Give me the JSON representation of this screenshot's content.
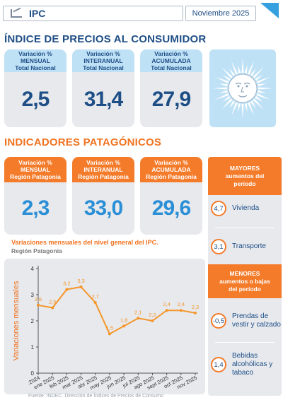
{
  "header": {
    "title": "IPC",
    "date": "Noviembre  2025"
  },
  "nacional": {
    "title": "ÍNDICE DE PRECIOS AL CONSUMIDOR",
    "cards": [
      {
        "line1": "Variación %",
        "line2": "MENSUAL",
        "line3": "Total Nacional",
        "value": "2,5"
      },
      {
        "line1": "Variación %",
        "line2": "INTERANUAL",
        "line3": "Total Nacional",
        "value": "31,4"
      },
      {
        "line1": "Variación %",
        "line2": "ACUMULADA",
        "line3": "Total Nacional",
        "value": "27,9"
      }
    ]
  },
  "patagonia": {
    "title": "INDICADORES PATAGÓNICOS",
    "cards": [
      {
        "line1": "Variación %",
        "line2": "MENSUAL",
        "line3": "Región Patagonia",
        "value": "2,3"
      },
      {
        "line1": "Variación %",
        "line2": "INTERANUAL",
        "line3": "Región Patagonia",
        "value": "33,0"
      },
      {
        "line1": "Variación %",
        "line2": "ACUMULADA",
        "line3": "Región Patagonia",
        "value": "29,6"
      }
    ]
  },
  "side": {
    "mayores_title": [
      "MAYORES",
      "aumentos del",
      "período"
    ],
    "mayores": [
      {
        "value": "4,7",
        "label": "Vivienda"
      },
      {
        "value": "3,1",
        "label": "Transporte"
      }
    ],
    "menores_title": [
      "MENORES",
      "aumentos o bajas",
      "del período"
    ],
    "menores": [
      {
        "value": "-0,5",
        "label_lines": [
          "Prendas de",
          "vestir y calzado"
        ]
      },
      {
        "value": "1,4",
        "label_lines": [
          "Bebidas",
          "alcohólicas y",
          "tabaco"
        ]
      }
    ]
  },
  "colors": {
    "navy": "#1e4e86",
    "orange": "#f47b2a",
    "light_blue": "#bfe1f6",
    "grey_panel": "#e7e9ed"
  },
  "chart_data": {
    "type": "line",
    "title": "Variaciones mensuales del nivel general del IPC.",
    "subtitle": "Región Patagonia",
    "ylabel": "Variaciones mensuales",
    "xlabel": "",
    "ylim": [
      0,
      4
    ],
    "yticks": [
      "0",
      "1",
      "2",
      "3",
      "4"
    ],
    "categories": [
      ".2024",
      "ene 2025",
      "feb 2025",
      "mar 2025",
      "abr 2025",
      "may 2025",
      "jun 2025",
      "jul 2025",
      "ago 2025",
      "sept 2025",
      "oct 2025",
      "nov 2025"
    ],
    "values": [
      2.6,
      2.5,
      3.2,
      3.3,
      2.7,
      1.5,
      1.8,
      2.1,
      2.0,
      2.4,
      2.4,
      2.3
    ],
    "labels": [
      "2,6",
      "2,5",
      "3,2",
      "3,3",
      "2,7",
      "1,5",
      "1,8",
      "2,1",
      "2,0",
      "2,4",
      "2,4",
      "2,3"
    ],
    "grid": false,
    "color": "#f5962a"
  },
  "source": "Fuente: INDEC. Dirección de Índices de Precios de Consumo"
}
